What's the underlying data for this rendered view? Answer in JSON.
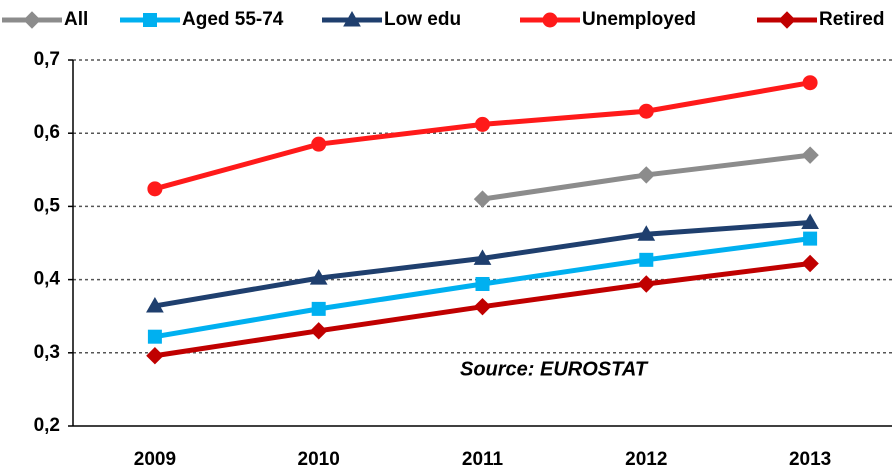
{
  "chart_data": {
    "type": "line",
    "categories": [
      "2009",
      "2010",
      "2011",
      "2012",
      "2013"
    ],
    "series": [
      {
        "name": "All",
        "color": "#8c8c8c",
        "marker": "diamond",
        "values": [
          null,
          null,
          0.51,
          0.543,
          0.57
        ]
      },
      {
        "name": "Aged 55-74",
        "color": "#00b0f0",
        "marker": "square",
        "values": [
          0.322,
          0.36,
          0.394,
          0.427,
          0.456
        ]
      },
      {
        "name": "Low edu",
        "color": "#1f3f6e",
        "marker": "triangle",
        "values": [
          0.364,
          0.402,
          0.429,
          0.462,
          0.478
        ]
      },
      {
        "name": "Unemployed",
        "color": "#ff1a1a",
        "marker": "circle",
        "values": [
          0.524,
          0.585,
          0.612,
          0.63,
          0.669
        ]
      },
      {
        "name": "Retired",
        "color": "#c00000",
        "marker": "diamond",
        "values": [
          0.296,
          0.33,
          0.363,
          0.394,
          0.422
        ]
      }
    ],
    "ylim": [
      0.2,
      0.7
    ],
    "yticks": [
      {
        "value": 0.2,
        "label": "0,2"
      },
      {
        "value": 0.3,
        "label": "0,3"
      },
      {
        "value": 0.4,
        "label": "0,4"
      },
      {
        "value": 0.5,
        "label": "0,5"
      },
      {
        "value": 0.6,
        "label": "0,6"
      },
      {
        "value": 0.7,
        "label": "0,7"
      }
    ],
    "grid": true,
    "annotation": "Source: EUROSTAT"
  }
}
